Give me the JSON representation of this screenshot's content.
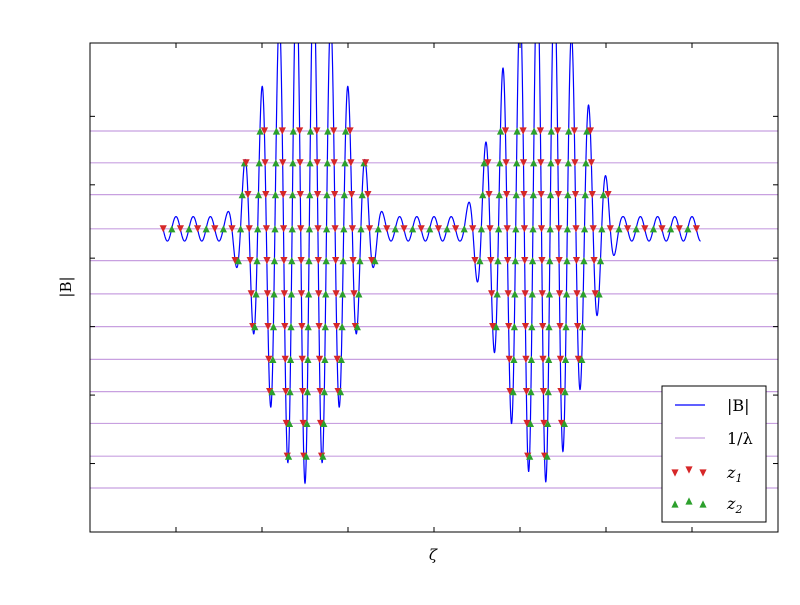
{
  "chart_data": {
    "type": "line",
    "title": "",
    "xlabel": "ζ",
    "ylabel": "|B|",
    "x_tick_labels": [],
    "y_tick_labels": [],
    "xlim": [
      0.0,
      8.0
    ],
    "ylim": [
      0.0,
      1.0
    ],
    "grid": false,
    "legend": {
      "placement": "bottom-right",
      "entries": [
        {
          "label": "|B|",
          "kind": "line",
          "color": "#0000ff"
        },
        {
          "label": "1/λ",
          "kind": "line",
          "color": "#c8a0e0"
        },
        {
          "label": "z",
          "subscript": "1",
          "kind": "marker",
          "marker": "triangle-down",
          "color": "#d62728"
        },
        {
          "label": "z",
          "subscript": "2",
          "kind": "marker",
          "marker": "triangle-up",
          "color": "#2ca02c"
        }
      ]
    },
    "series": [
      {
        "name": "|B|",
        "color": "#0000ff",
        "function": {
          "x_range": [
            0.85,
            7.1
          ],
          "carrier_period": 0.2,
          "base_level": 0.62,
          "background_amplitude": 0.025,
          "wells": [
            {
              "center": 2.5,
              "amplitude": 0.52,
              "half_width": 0.95
            },
            {
              "center": 5.25,
              "amplitude": 0.52,
              "half_width": 0.95
            }
          ]
        }
      },
      {
        "name": "1/λ",
        "color": "#c8a0e0",
        "levels": [
          0.82,
          0.755,
          0.69,
          0.62,
          0.555,
          0.487,
          0.42,
          0.353,
          0.287,
          0.222,
          0.155,
          0.09
        ]
      }
    ],
    "markers": {
      "z1_color": "#d62728",
      "z2_color": "#2ca02c"
    }
  }
}
